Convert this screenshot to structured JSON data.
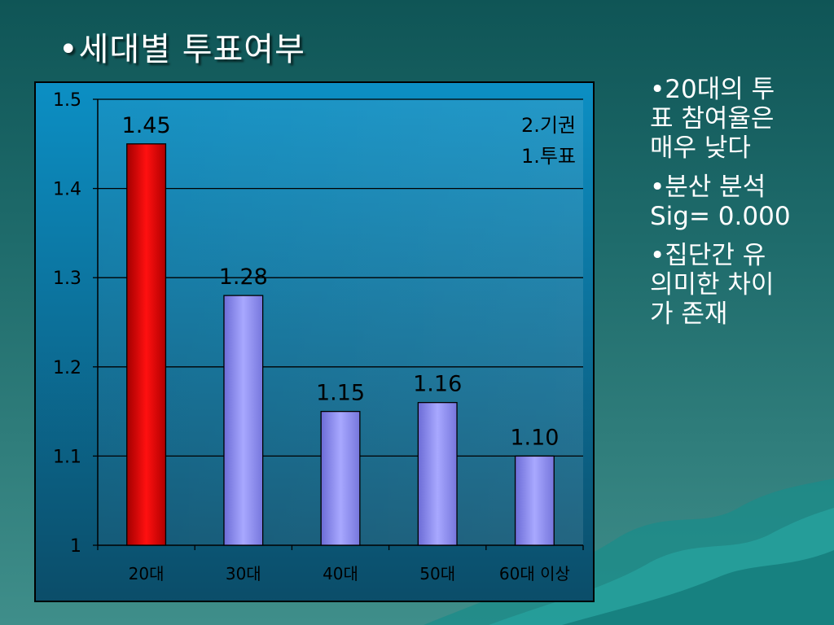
{
  "slide": {
    "title": "•세대별 투표여부",
    "bullets": [
      "•20대의 투\n표 참여율은\n매우 낮다",
      "•분산 분석\nSig= 0.000",
      "•집단간 유\n의미한 차이\n가 존재"
    ]
  },
  "colors": {
    "highlight_bar": "#ff0000",
    "default_bar": "#9f9ff5",
    "chart_bg_top": "#0c8fc4",
    "chart_bg_bottom": "#0b4d69",
    "text_dark": "#000000",
    "text_light": "#ffffff"
  },
  "chart_data": {
    "type": "bar",
    "title": "",
    "xlabel": "",
    "ylabel": "",
    "categories": [
      "20대",
      "30대",
      "40대",
      "50대",
      "60대 이상"
    ],
    "values": [
      1.45,
      1.28,
      1.15,
      1.16,
      1.1
    ],
    "data_labels": [
      "1.45",
      "1.28",
      "1.15",
      "1.16",
      "1.10"
    ],
    "highlight_index": 0,
    "ylim": [
      1,
      1.5
    ],
    "yticks": [
      1,
      1.1,
      1.2,
      1.3,
      1.4,
      1.5
    ],
    "ytick_labels": [
      "1",
      "1.1",
      "1.2",
      "1.3",
      "1.4",
      "1.5"
    ],
    "grid": true,
    "annotation": [
      "2.기권",
      "1.투표"
    ],
    "annotation_position": "top-right"
  }
}
